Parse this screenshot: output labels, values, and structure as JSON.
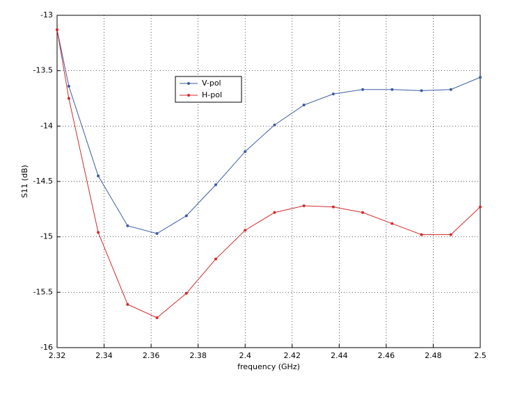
{
  "chart_data": {
    "type": "line",
    "x_label": "frequency (GHz)",
    "y_label": "S11 (dB)",
    "x": [
      2.32,
      2.325,
      2.3375,
      2.35,
      2.3625,
      2.375,
      2.3875,
      2.4,
      2.4125,
      2.425,
      2.4375,
      2.45,
      2.4625,
      2.475,
      2.4875,
      2.5
    ],
    "series": [
      {
        "name": "V-pol",
        "color": "#3b5ba5",
        "values": [
          -13.13,
          -13.64,
          -14.45,
          -14.9,
          -14.97,
          -14.81,
          -14.53,
          -14.23,
          -13.99,
          -13.81,
          -13.71,
          -13.67,
          -13.67,
          -13.68,
          -13.67,
          -13.56
        ]
      },
      {
        "name": "H-pol",
        "color": "#d42a2a",
        "values": [
          -13.13,
          -13.75,
          -14.96,
          -15.61,
          -15.73,
          -15.51,
          -15.2,
          -14.94,
          -14.78,
          -14.72,
          -14.73,
          -14.78,
          -14.88,
          -14.98,
          -14.98,
          -14.73
        ]
      }
    ],
    "xlim": [
      2.32,
      2.5
    ],
    "xticks": [
      2.32,
      2.34,
      2.36,
      2.38,
      2.4,
      2.42,
      2.44,
      2.46,
      2.48,
      2.5
    ],
    "ylim": [
      -16,
      -13
    ],
    "yticks": [
      -16,
      -15.5,
      -15,
      -14.5,
      -14,
      -13.5,
      -13
    ],
    "grid": true,
    "legend": "upper-left"
  }
}
